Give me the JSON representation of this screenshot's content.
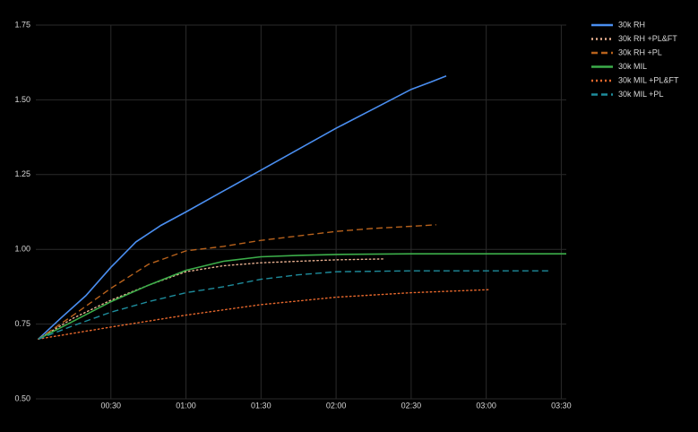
{
  "chart_data": {
    "type": "line",
    "xlim": [
      0,
      212
    ],
    "ylim": [
      0.5,
      1.75
    ],
    "xticks": [
      {
        "value": 30,
        "label": "00:30"
      },
      {
        "value": 60,
        "label": "01:00"
      },
      {
        "value": 90,
        "label": "01:30"
      },
      {
        "value": 120,
        "label": "02:00"
      },
      {
        "value": 150,
        "label": "02:30"
      },
      {
        "value": 180,
        "label": "03:00"
      },
      {
        "value": 210,
        "label": "03:30"
      }
    ],
    "yticks": [
      {
        "value": 0.5,
        "label": "0.50"
      },
      0.75,
      {
        "value": 1.0,
        "label": "1.00"
      },
      1.25,
      {
        "value": 1.5,
        "label": "1.50"
      },
      1.75
    ],
    "grid": true,
    "legend": "top-right",
    "series": [
      {
        "name": "30k RH",
        "color": "#4a8ef0",
        "dash": "solid",
        "x": [
          1,
          10,
          20,
          30,
          40,
          50,
          60,
          75,
          90,
          105,
          120,
          135,
          150,
          158,
          164
        ],
        "values": [
          0.7,
          0.77,
          0.845,
          0.94,
          1.025,
          1.08,
          1.125,
          1.195,
          1.265,
          1.335,
          1.405,
          1.47,
          1.535,
          1.56,
          1.58
        ]
      },
      {
        "name": "30k RH +PL&FT",
        "color": "#e8b090",
        "dash": "dotted",
        "x": [
          1,
          15,
          30,
          45,
          60,
          75,
          90,
          105,
          120,
          139
        ],
        "values": [
          0.7,
          0.77,
          0.83,
          0.88,
          0.925,
          0.945,
          0.955,
          0.96,
          0.965,
          0.968
        ]
      },
      {
        "name": "30k RH +PL",
        "color": "#b8621c",
        "dash": "dashed",
        "x": [
          1,
          15,
          30,
          45,
          60,
          75,
          90,
          105,
          120,
          135,
          150,
          160
        ],
        "values": [
          0.7,
          0.78,
          0.87,
          0.95,
          0.995,
          1.01,
          1.03,
          1.045,
          1.06,
          1.07,
          1.077,
          1.082
        ]
      },
      {
        "name": "30k MIL",
        "color": "#3cae4a",
        "dash": "solid",
        "x": [
          1,
          15,
          30,
          45,
          60,
          75,
          90,
          105,
          120,
          150,
          180,
          212
        ],
        "values": [
          0.7,
          0.76,
          0.825,
          0.88,
          0.93,
          0.96,
          0.975,
          0.98,
          0.983,
          0.985,
          0.985,
          0.985
        ]
      },
      {
        "name": "30k MIL +PL&FT",
        "color": "#e8682c",
        "dash": "dotted",
        "x": [
          1,
          30,
          60,
          90,
          120,
          150,
          181
        ],
        "values": [
          0.7,
          0.74,
          0.78,
          0.815,
          0.84,
          0.855,
          0.865
        ]
      },
      {
        "name": "30k MIL +PL",
        "color": "#1e8c9c",
        "dash": "dashed",
        "x": [
          1,
          15,
          30,
          45,
          60,
          75,
          90,
          105,
          120,
          150,
          180,
          206
        ],
        "values": [
          0.7,
          0.745,
          0.79,
          0.825,
          0.855,
          0.875,
          0.9,
          0.915,
          0.925,
          0.928,
          0.928,
          0.928
        ]
      }
    ]
  }
}
